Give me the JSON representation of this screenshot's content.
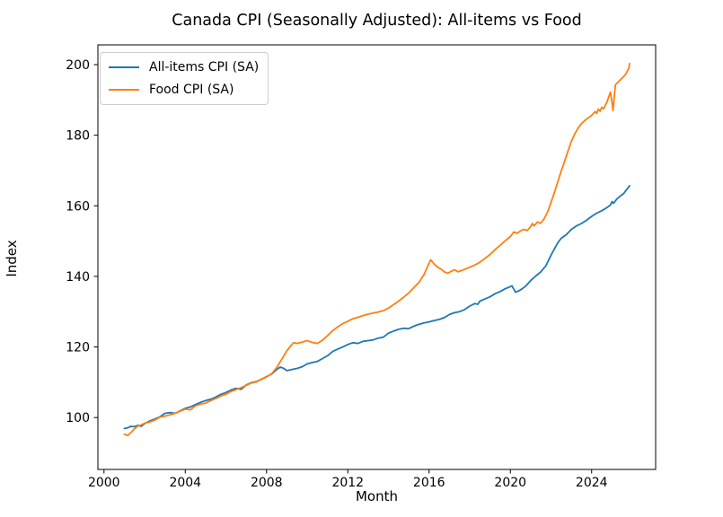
{
  "chart_data": {
    "type": "line",
    "title": "Canada CPI (Seasonally Adjusted): All-items vs Food",
    "xlabel": "Month",
    "ylabel": "Index",
    "grid": false,
    "legend_position": "upper left",
    "xlim": [
      1999.7,
      2027.15
    ],
    "ylim": [
      85.3,
      205.6
    ],
    "x_ticks": [
      2000,
      2004,
      2008,
      2012,
      2016,
      2020,
      2024
    ],
    "y_ticks": [
      100,
      120,
      140,
      160,
      180,
      200
    ],
    "frame_color": "#000000",
    "series": [
      {
        "name": "All-items CPI (SA)",
        "color": "#1f77b4",
        "points": [
          [
            2001.0,
            96.9
          ],
          [
            2001.17,
            97.1
          ],
          [
            2001.33,
            97.5
          ],
          [
            2001.5,
            97.4
          ],
          [
            2001.67,
            97.8
          ],
          [
            2001.83,
            97.5
          ],
          [
            2002.0,
            98.3
          ],
          [
            2002.25,
            99.0
          ],
          [
            2002.5,
            99.6
          ],
          [
            2002.75,
            100.2
          ],
          [
            2003.0,
            101.2
          ],
          [
            2003.25,
            101.4
          ],
          [
            2003.5,
            101.2
          ],
          [
            2003.75,
            101.9
          ],
          [
            2004.0,
            102.6
          ],
          [
            2004.25,
            103.0
          ],
          [
            2004.5,
            103.7
          ],
          [
            2004.75,
            104.3
          ],
          [
            2005.0,
            104.8
          ],
          [
            2005.25,
            105.2
          ],
          [
            2005.5,
            105.8
          ],
          [
            2005.75,
            106.6
          ],
          [
            2006.0,
            107.1
          ],
          [
            2006.25,
            107.8
          ],
          [
            2006.5,
            108.3
          ],
          [
            2006.75,
            108.0
          ],
          [
            2007.0,
            109.2
          ],
          [
            2007.25,
            109.9
          ],
          [
            2007.5,
            110.2
          ],
          [
            2007.75,
            110.8
          ],
          [
            2008.0,
            111.6
          ],
          [
            2008.25,
            112.3
          ],
          [
            2008.5,
            113.6
          ],
          [
            2008.67,
            114.3
          ],
          [
            2008.83,
            114.0
          ],
          [
            2009.0,
            113.3
          ],
          [
            2009.17,
            113.5
          ],
          [
            2009.33,
            113.7
          ],
          [
            2009.5,
            113.9
          ],
          [
            2009.75,
            114.4
          ],
          [
            2010.0,
            115.2
          ],
          [
            2010.25,
            115.6
          ],
          [
            2010.5,
            115.9
          ],
          [
            2010.75,
            116.7
          ],
          [
            2011.0,
            117.5
          ],
          [
            2011.25,
            118.7
          ],
          [
            2011.5,
            119.4
          ],
          [
            2011.75,
            120.0
          ],
          [
            2012.0,
            120.7
          ],
          [
            2012.25,
            121.2
          ],
          [
            2012.5,
            121.0
          ],
          [
            2012.75,
            121.6
          ],
          [
            2013.0,
            121.8
          ],
          [
            2013.25,
            122.0
          ],
          [
            2013.5,
            122.5
          ],
          [
            2013.75,
            122.8
          ],
          [
            2014.0,
            123.9
          ],
          [
            2014.25,
            124.5
          ],
          [
            2014.5,
            125.0
          ],
          [
            2014.75,
            125.3
          ],
          [
            2015.0,
            125.2
          ],
          [
            2015.25,
            125.9
          ],
          [
            2015.5,
            126.4
          ],
          [
            2015.75,
            126.8
          ],
          [
            2016.0,
            127.1
          ],
          [
            2016.25,
            127.5
          ],
          [
            2016.5,
            127.8
          ],
          [
            2016.75,
            128.3
          ],
          [
            2017.0,
            129.2
          ],
          [
            2017.25,
            129.7
          ],
          [
            2017.5,
            130.0
          ],
          [
            2017.75,
            130.6
          ],
          [
            2018.0,
            131.6
          ],
          [
            2018.25,
            132.3
          ],
          [
            2018.4,
            132.1
          ],
          [
            2018.5,
            133.0
          ],
          [
            2018.75,
            133.6
          ],
          [
            2019.0,
            134.2
          ],
          [
            2019.25,
            135.1
          ],
          [
            2019.5,
            135.7
          ],
          [
            2019.75,
            136.5
          ],
          [
            2019.92,
            136.9
          ],
          [
            2020.08,
            137.3
          ],
          [
            2020.25,
            135.5
          ],
          [
            2020.42,
            135.9
          ],
          [
            2020.58,
            136.5
          ],
          [
            2020.75,
            137.2
          ],
          [
            2021.0,
            138.8
          ],
          [
            2021.25,
            140.1
          ],
          [
            2021.5,
            141.3
          ],
          [
            2021.75,
            143.0
          ],
          [
            2022.0,
            146.0
          ],
          [
            2022.17,
            147.8
          ],
          [
            2022.33,
            149.5
          ],
          [
            2022.5,
            150.8
          ],
          [
            2022.75,
            151.8
          ],
          [
            2023.0,
            153.3
          ],
          [
            2023.25,
            154.3
          ],
          [
            2023.5,
            155.0
          ],
          [
            2023.75,
            155.9
          ],
          [
            2024.0,
            157.0
          ],
          [
            2024.25,
            157.9
          ],
          [
            2024.5,
            158.6
          ],
          [
            2024.75,
            159.5
          ],
          [
            2024.92,
            160.2
          ],
          [
            2025.0,
            161.2
          ],
          [
            2025.08,
            160.7
          ],
          [
            2025.25,
            162.0
          ],
          [
            2025.42,
            162.8
          ],
          [
            2025.58,
            163.5
          ],
          [
            2025.75,
            164.8
          ],
          [
            2025.87,
            165.7
          ]
        ]
      },
      {
        "name": "Food CPI (SA)",
        "color": "#ff7f0e",
        "points": [
          [
            2001.0,
            95.3
          ],
          [
            2001.17,
            94.9
          ],
          [
            2001.33,
            95.8
          ],
          [
            2001.5,
            96.8
          ],
          [
            2001.67,
            97.6
          ],
          [
            2001.83,
            97.9
          ],
          [
            2002.0,
            98.4
          ],
          [
            2002.25,
            98.7
          ],
          [
            2002.5,
            99.3
          ],
          [
            2002.75,
            100.1
          ],
          [
            2003.0,
            100.4
          ],
          [
            2003.25,
            100.8
          ],
          [
            2003.5,
            101.2
          ],
          [
            2003.75,
            101.8
          ],
          [
            2004.0,
            102.4
          ],
          [
            2004.25,
            102.2
          ],
          [
            2004.5,
            103.3
          ],
          [
            2004.75,
            103.8
          ],
          [
            2005.0,
            104.1
          ],
          [
            2005.25,
            104.8
          ],
          [
            2005.5,
            105.4
          ],
          [
            2005.75,
            106.1
          ],
          [
            2006.0,
            106.6
          ],
          [
            2006.25,
            107.4
          ],
          [
            2006.5,
            107.9
          ],
          [
            2006.75,
            108.5
          ],
          [
            2007.0,
            109.1
          ],
          [
            2007.25,
            109.8
          ],
          [
            2007.5,
            110.1
          ],
          [
            2007.75,
            110.9
          ],
          [
            2008.0,
            111.5
          ],
          [
            2008.25,
            112.4
          ],
          [
            2008.5,
            114.2
          ],
          [
            2008.75,
            116.5
          ],
          [
            2009.0,
            118.9
          ],
          [
            2009.17,
            120.2
          ],
          [
            2009.33,
            121.2
          ],
          [
            2009.5,
            121.0
          ],
          [
            2009.75,
            121.4
          ],
          [
            2010.0,
            121.8
          ],
          [
            2010.25,
            121.3
          ],
          [
            2010.5,
            121.0
          ],
          [
            2010.75,
            121.9
          ],
          [
            2011.0,
            123.2
          ],
          [
            2011.25,
            124.6
          ],
          [
            2011.5,
            125.7
          ],
          [
            2011.75,
            126.6
          ],
          [
            2012.0,
            127.3
          ],
          [
            2012.25,
            128.0
          ],
          [
            2012.5,
            128.4
          ],
          [
            2012.75,
            128.9
          ],
          [
            2013.0,
            129.3
          ],
          [
            2013.25,
            129.6
          ],
          [
            2013.5,
            129.9
          ],
          [
            2013.75,
            130.3
          ],
          [
            2014.0,
            131.0
          ],
          [
            2014.25,
            132.0
          ],
          [
            2014.5,
            133.0
          ],
          [
            2014.75,
            134.1
          ],
          [
            2015.0,
            135.3
          ],
          [
            2015.25,
            136.8
          ],
          [
            2015.5,
            138.3
          ],
          [
            2015.75,
            140.5
          ],
          [
            2016.0,
            143.8
          ],
          [
            2016.08,
            144.7
          ],
          [
            2016.25,
            143.5
          ],
          [
            2016.42,
            142.6
          ],
          [
            2016.58,
            142.1
          ],
          [
            2016.75,
            141.3
          ],
          [
            2016.92,
            140.9
          ],
          [
            2017.08,
            141.4
          ],
          [
            2017.25,
            141.9
          ],
          [
            2017.42,
            141.3
          ],
          [
            2017.58,
            141.6
          ],
          [
            2017.75,
            142.0
          ],
          [
            2018.0,
            142.6
          ],
          [
            2018.25,
            143.2
          ],
          [
            2018.5,
            144.0
          ],
          [
            2018.75,
            145.1
          ],
          [
            2019.0,
            146.2
          ],
          [
            2019.25,
            147.6
          ],
          [
            2019.5,
            148.8
          ],
          [
            2019.75,
            150.1
          ],
          [
            2020.0,
            151.3
          ],
          [
            2020.17,
            152.6
          ],
          [
            2020.33,
            152.2
          ],
          [
            2020.5,
            152.9
          ],
          [
            2020.67,
            153.3
          ],
          [
            2020.83,
            153.0
          ],
          [
            2021.0,
            154.1
          ],
          [
            2021.08,
            155.0
          ],
          [
            2021.17,
            154.3
          ],
          [
            2021.33,
            155.4
          ],
          [
            2021.5,
            155.1
          ],
          [
            2021.67,
            156.4
          ],
          [
            2021.83,
            158.2
          ],
          [
            2022.0,
            161.0
          ],
          [
            2022.17,
            163.8
          ],
          [
            2022.33,
            166.8
          ],
          [
            2022.5,
            169.8
          ],
          [
            2022.67,
            172.6
          ],
          [
            2022.83,
            175.4
          ],
          [
            2023.0,
            178.2
          ],
          [
            2023.17,
            180.4
          ],
          [
            2023.33,
            182.0
          ],
          [
            2023.5,
            183.3
          ],
          [
            2023.75,
            184.6
          ],
          [
            2024.0,
            185.6
          ],
          [
            2024.17,
            186.7
          ],
          [
            2024.25,
            186.2
          ],
          [
            2024.33,
            187.4
          ],
          [
            2024.42,
            186.8
          ],
          [
            2024.5,
            187.9
          ],
          [
            2024.58,
            187.5
          ],
          [
            2024.75,
            189.3
          ],
          [
            2024.92,
            192.2
          ],
          [
            2025.0,
            189.5
          ],
          [
            2025.05,
            187.0
          ],
          [
            2025.17,
            194.3
          ],
          [
            2025.33,
            195.2
          ],
          [
            2025.5,
            196.2
          ],
          [
            2025.67,
            197.2
          ],
          [
            2025.83,
            199.0
          ],
          [
            2025.87,
            200.3
          ]
        ]
      }
    ]
  }
}
